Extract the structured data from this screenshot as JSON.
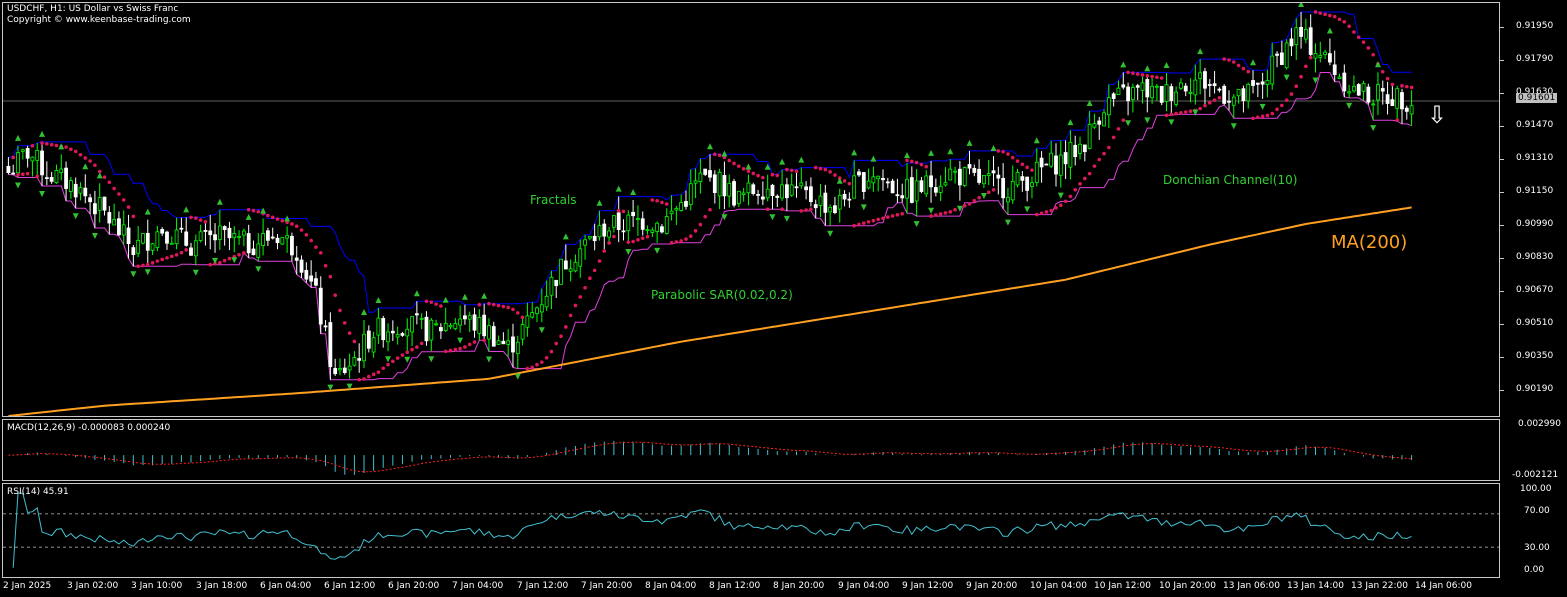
{
  "header": {
    "title": "USDCHF, H1:  US Dollar vs Swiss Franc",
    "copyright": "Copyright © www.keenbase-trading.com"
  },
  "current_price": "0.91601",
  "indicator_labels": {
    "fractals": "Fractals",
    "sar": "Parabolic SAR(0.02,0.2)",
    "donchian": "Donchian Channel(10)",
    "ma": "MA(200)"
  },
  "macd": {
    "label": "MACD(12,26,9) -0.000083 0.000240",
    "top": "0.002990",
    "bottom": "-0.002121"
  },
  "rsi": {
    "label": "RSI(14) 45.91",
    "levels": [
      "100.00",
      "70.00",
      "30.00",
      "0.00"
    ]
  },
  "colors": {
    "bull": "#00ff00",
    "bear": "#ffffff",
    "sar": "#e0185a",
    "donchian_upper": "#0000ff",
    "donchian_lower": "#e040e0",
    "ma": "#ffa020",
    "macd_hist": "#40c0d0",
    "macd_signal": "#ff2020",
    "rsi": "#40c0d0",
    "fractal": "#30c030",
    "arrow": "#ffffff"
  },
  "chart_data": {
    "type": "candlestick",
    "symbol": "USDCHF",
    "timeframe": "H1",
    "y_ticks": [
      "0.91950",
      "0.91790",
      "0.91630",
      "0.91470",
      "0.91310",
      "0.91150",
      "0.90990",
      "0.90830",
      "0.90670",
      "0.90510",
      "0.90350",
      "0.90190"
    ],
    "x_ticks": [
      "2 Jan 2025",
      "3 Jan 02:00",
      "3 Jan 10:00",
      "3 Jan 18:00",
      "6 Jan 04:00",
      "6 Jan 12:00",
      "6 Jan 20:00",
      "7 Jan 04:00",
      "7 Jan 12:00",
      "7 Jan 20:00",
      "8 Jan 04:00",
      "8 Jan 12:00",
      "8 Jan 20:00",
      "9 Jan 04:00",
      "9 Jan 12:00",
      "9 Jan 20:00",
      "10 Jan 04:00",
      "10 Jan 12:00",
      "10 Jan 20:00",
      "13 Jan 06:00",
      "13 Jan 14:00",
      "13 Jan 22:00",
      "14 Jan 06:00"
    ],
    "ylim": [
      0.9007,
      0.9207
    ],
    "close_anchors": [
      [
        0,
        0.9125
      ],
      [
        4,
        0.9135
      ],
      [
        8,
        0.9125
      ],
      [
        14,
        0.9118
      ],
      [
        20,
        0.9105
      ],
      [
        26,
        0.9088
      ],
      [
        32,
        0.9098
      ],
      [
        38,
        0.909
      ],
      [
        44,
        0.9094
      ],
      [
        50,
        0.909
      ],
      [
        56,
        0.9095
      ],
      [
        60,
        0.9088
      ],
      [
        64,
        0.9065
      ],
      [
        68,
        0.9025
      ],
      [
        72,
        0.9035
      ],
      [
        76,
        0.9048
      ],
      [
        82,
        0.9052
      ],
      [
        88,
        0.9048
      ],
      [
        94,
        0.9055
      ],
      [
        100,
        0.9048
      ],
      [
        104,
        0.904
      ],
      [
        108,
        0.9052
      ],
      [
        112,
        0.9068
      ],
      [
        116,
        0.9082
      ],
      [
        120,
        0.909
      ],
      [
        124,
        0.9098
      ],
      [
        128,
        0.91
      ],
      [
        132,
        0.9102
      ],
      [
        136,
        0.91
      ],
      [
        140,
        0.911
      ],
      [
        144,
        0.9122
      ],
      [
        148,
        0.912
      ],
      [
        152,
        0.9112
      ],
      [
        156,
        0.9118
      ],
      [
        160,
        0.9118
      ],
      [
        164,
        0.9115
      ],
      [
        168,
        0.9112
      ],
      [
        172,
        0.9108
      ],
      [
        176,
        0.9118
      ],
      [
        180,
        0.9125
      ],
      [
        184,
        0.9118
      ],
      [
        188,
        0.9115
      ],
      [
        192,
        0.912
      ],
      [
        196,
        0.9125
      ],
      [
        200,
        0.9122
      ],
      [
        204,
        0.912
      ],
      [
        208,
        0.9118
      ],
      [
        212,
        0.9122
      ],
      [
        216,
        0.9128
      ],
      [
        220,
        0.9132
      ],
      [
        224,
        0.914
      ],
      [
        228,
        0.9158
      ],
      [
        232,
        0.9162
      ],
      [
        236,
        0.9165
      ],
      [
        240,
        0.9162
      ],
      [
        244,
        0.9168
      ],
      [
        248,
        0.917
      ],
      [
        252,
        0.9165
      ],
      [
        256,
        0.916
      ],
      [
        260,
        0.9165
      ],
      [
        264,
        0.918
      ],
      [
        268,
        0.9192
      ],
      [
        272,
        0.9185
      ],
      [
        276,
        0.9175
      ],
      [
        280,
        0.9165
      ],
      [
        284,
        0.9162
      ],
      [
        288,
        0.9162
      ],
      [
        292,
        0.916
      ]
    ],
    "ma200_anchors": [
      [
        0,
        0.9007
      ],
      [
        20,
        0.9012
      ],
      [
        60,
        0.9018
      ],
      [
        100,
        0.9025
      ],
      [
        140,
        0.9043
      ],
      [
        180,
        0.9058
      ],
      [
        220,
        0.9073
      ],
      [
        250,
        0.909
      ],
      [
        270,
        0.91
      ],
      [
        292,
        0.9108
      ]
    ],
    "bar_count": 293
  },
  "arrow": "⇩"
}
